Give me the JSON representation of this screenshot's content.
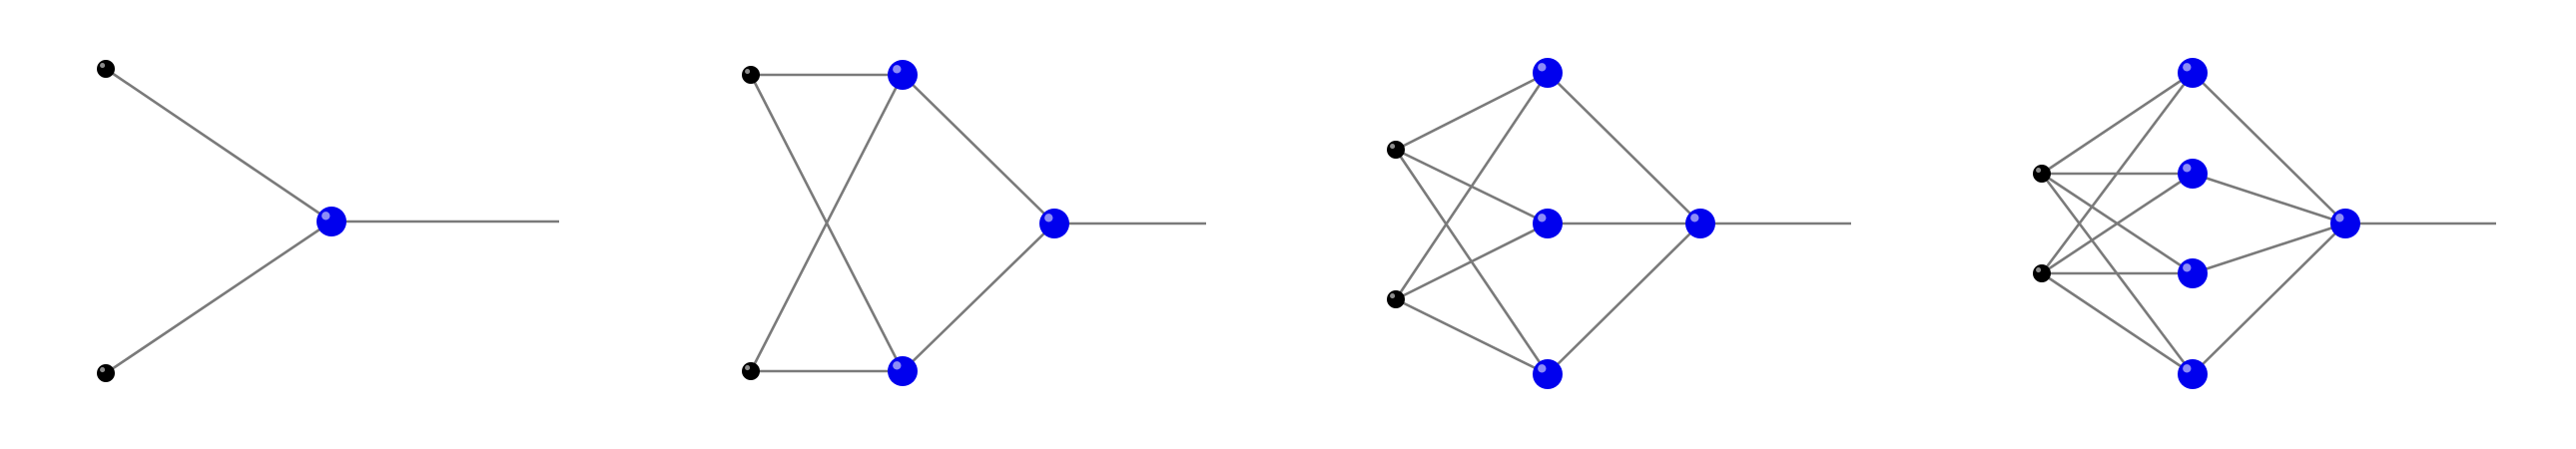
{
  "colors": {
    "background": "#ffffff",
    "edge": "#7a7a7a",
    "input_node": "#000000",
    "input_node_highlight": "#ffffff",
    "hidden_node": "#0000ee",
    "hidden_node_highlight": "#ffffff"
  },
  "networks": [
    {
      "name": "network-1",
      "inputs": 2,
      "hidden": 1
    },
    {
      "name": "network-2",
      "inputs": 2,
      "hidden": 2
    },
    {
      "name": "network-3",
      "inputs": 2,
      "hidden": 3
    },
    {
      "name": "network-4",
      "inputs": 2,
      "hidden": 4
    }
  ]
}
